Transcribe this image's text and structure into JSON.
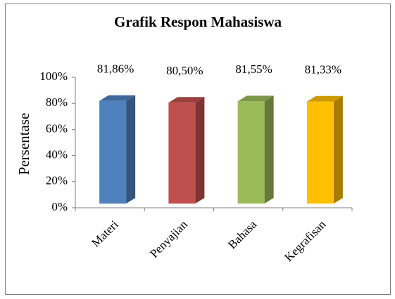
{
  "chart_data": {
    "type": "bar",
    "title": "Grafik Respon Mahasiswa",
    "y_label": "Persentase",
    "categories": [
      "Materi",
      "Penyajian",
      "Bahasa",
      "Kegrafisan"
    ],
    "values": [
      81.86,
      80.5,
      81.55,
      81.33
    ],
    "value_labels": [
      "81,86%",
      "80,50%",
      "81,55%",
      "81,33%"
    ],
    "colors": [
      "#4f81bd",
      "#c0504d",
      "#9bbb59",
      "#ffc000"
    ],
    "ylim": [
      0,
      100
    ],
    "yticks": [
      {
        "value": 0,
        "label": "0%"
      },
      {
        "value": 20,
        "label": "20%"
      },
      {
        "value": 40,
        "label": "40%"
      },
      {
        "value": 60,
        "label": "60%"
      },
      {
        "value": 80,
        "label": "80%"
      },
      {
        "value": 100,
        "label": "100%"
      }
    ]
  }
}
